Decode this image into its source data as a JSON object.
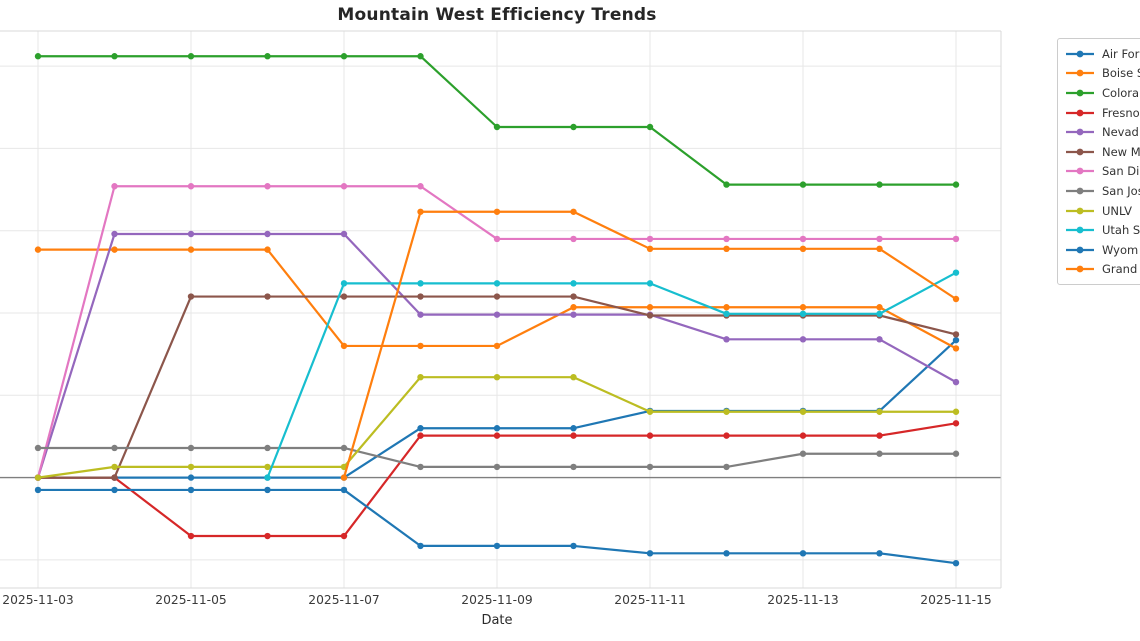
{
  "title": "Mountain West Efficiency Trends",
  "x_axis": {
    "label": "Date",
    "tick_labels": [
      "2025-11-03",
      "2025-11-05",
      "2025-11-07",
      "2025-11-09",
      "2025-11-11",
      "2025-11-13",
      "2025-11-15"
    ]
  },
  "y_axis": {
    "tick_labels_visible": false,
    "zero_baseline_shown": true
  },
  "legend": {
    "entries": [
      {
        "label": "Air For",
        "color": "#1f77b4"
      },
      {
        "label": "Boise S",
        "color": "#ff7f0e"
      },
      {
        "label": "Colora",
        "color": "#2ca02c"
      },
      {
        "label": "Fresno",
        "color": "#d62728"
      },
      {
        "label": "Nevad",
        "color": "#9467bd"
      },
      {
        "label": "New M",
        "color": "#8c564b"
      },
      {
        "label": "San Di",
        "color": "#e377c2"
      },
      {
        "label": "San Jos",
        "color": "#7f7f7f"
      },
      {
        "label": "UNLV",
        "color": "#bcbd22"
      },
      {
        "label": "Utah S",
        "color": "#17becf"
      },
      {
        "label": "Wyom",
        "color": "#1f77b4"
      },
      {
        "label": "Grand",
        "color": "#ff7f0e"
      }
    ]
  },
  "chart_data": {
    "type": "line",
    "title": "Mountain West Efficiency Trends",
    "xlabel": "Date",
    "ylabel": "",
    "x": [
      "2025-11-03",
      "2025-11-04",
      "2025-11-05",
      "2025-11-06",
      "2025-11-07",
      "2025-11-08",
      "2025-11-09",
      "2025-11-10",
      "2025-11-11",
      "2025-11-12",
      "2025-11-13",
      "2025-11-14",
      "2025-11-15"
    ],
    "x_tick_labels": [
      "2025-11-03",
      "2025-11-05",
      "2025-11-07",
      "2025-11-09",
      "2025-11-11",
      "2025-11-13",
      "2025-11-15"
    ],
    "y_units_note": "y tick labels are cropped out of the image; values estimated in gridline units relative to the dark zero baseline (1 unit = 1 gridline)",
    "ylim": [
      -1.34,
      5.44
    ],
    "grid": true,
    "zero_line": true,
    "marker": "circle",
    "legend_position": "outside upper right, clipped by image edge",
    "series": [
      {
        "name": "Air For",
        "color": "#1f77b4",
        "values": [
          0,
          0,
          0,
          0,
          0,
          0.6,
          0.6,
          0.6,
          0.81,
          0.81,
          0.81,
          0.81,
          1.67
        ]
      },
      {
        "name": "Boise S",
        "color": "#ff7f0e",
        "values": [
          2.77,
          2.77,
          2.77,
          2.77,
          1.6,
          1.6,
          1.6,
          2.07,
          2.07,
          2.07,
          2.07,
          2.07,
          1.57
        ]
      },
      {
        "name": "Colora",
        "color": "#2ca02c",
        "values": [
          5.12,
          5.12,
          5.12,
          5.12,
          5.12,
          5.12,
          4.26,
          4.26,
          4.26,
          3.56,
          3.56,
          3.56,
          3.56
        ]
      },
      {
        "name": "Fresno",
        "color": "#d62728",
        "values": [
          0,
          0,
          -0.71,
          -0.71,
          -0.71,
          0.51,
          0.51,
          0.51,
          0.51,
          0.51,
          0.51,
          0.51,
          0.66
        ]
      },
      {
        "name": "Nevad",
        "color": "#9467bd",
        "values": [
          0,
          2.96,
          2.96,
          2.96,
          2.96,
          1.98,
          1.98,
          1.98,
          1.98,
          1.68,
          1.68,
          1.68,
          1.16
        ]
      },
      {
        "name": "New M",
        "color": "#8c564b",
        "values": [
          0,
          0,
          2.2,
          2.2,
          2.2,
          2.2,
          2.2,
          2.2,
          1.97,
          1.97,
          1.97,
          1.97,
          1.74
        ]
      },
      {
        "name": "San Di",
        "color": "#e377c2",
        "values": [
          0,
          3.54,
          3.54,
          3.54,
          3.54,
          3.54,
          2.9,
          2.9,
          2.9,
          2.9,
          2.9,
          2.9,
          2.9
        ]
      },
      {
        "name": "San Jos",
        "color": "#7f7f7f",
        "values": [
          0.36,
          0.36,
          0.36,
          0.36,
          0.36,
          0.13,
          0.13,
          0.13,
          0.13,
          0.13,
          0.29,
          0.29,
          0.29
        ]
      },
      {
        "name": "UNLV",
        "color": "#bcbd22",
        "values": [
          0,
          0.13,
          0.13,
          0.13,
          0.13,
          1.22,
          1.22,
          1.22,
          0.8,
          0.8,
          0.8,
          0.8,
          0.8
        ]
      },
      {
        "name": "Utah S",
        "color": "#17becf",
        "values": [
          null,
          null,
          null,
          0,
          2.36,
          2.36,
          2.36,
          2.36,
          2.36,
          1.99,
          1.99,
          1.99,
          2.49
        ]
      },
      {
        "name": "Wyom",
        "color": "#1f77b4",
        "values": [
          -0.15,
          -0.15,
          -0.15,
          -0.15,
          -0.15,
          -0.83,
          -0.83,
          -0.83,
          -0.92,
          -0.92,
          -0.92,
          -0.92,
          -1.04
        ]
      },
      {
        "name": "Grand",
        "color": "#ff7f0e",
        "values": [
          null,
          null,
          null,
          null,
          0,
          3.23,
          3.23,
          3.23,
          2.78,
          2.78,
          2.78,
          2.78,
          2.17
        ]
      }
    ]
  }
}
